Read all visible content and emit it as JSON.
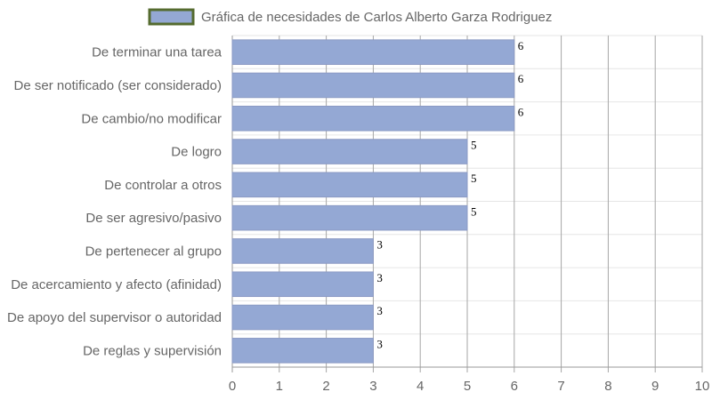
{
  "chart_data": {
    "type": "bar",
    "orientation": "horizontal",
    "categories": [
      "De terminar una tarea",
      "De ser notificado (ser considerado)",
      "De cambio/no modificar",
      "De logro",
      "De controlar a otros",
      "De ser agresivo/pasivo",
      "De pertenecer al grupo",
      "De acercamiento y afecto (afinidad)",
      "De apoyo del supervisor o autoridad",
      "De reglas y supervisión"
    ],
    "series": [
      {
        "name": "Gráfica de necesidades de Carlos Alberto Garza Rodriguez",
        "values": [
          6,
          6,
          6,
          5,
          5,
          5,
          3,
          3,
          3,
          3
        ],
        "color": "#94a8d4",
        "border_color": "#8b9ac4"
      }
    ],
    "xlim": [
      0,
      10
    ],
    "x_ticks": [
      "0",
      "1",
      "2",
      "3",
      "4",
      "5",
      "6",
      "7",
      "8",
      "9",
      "10"
    ],
    "legend_position": "top",
    "legend_border_color": "#556b2f",
    "grid": true,
    "data_labels": true
  }
}
